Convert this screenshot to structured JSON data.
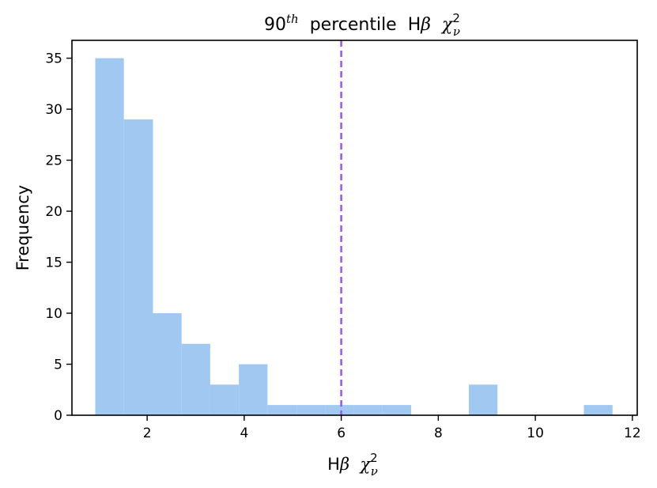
{
  "chart_data": {
    "type": "bar",
    "title": {
      "prefix": "90",
      "superscript": "th",
      "middle": "  percentile  H",
      "beta": "β",
      "chi": "χ",
      "chi_sub": "ν",
      "chi_sup": "2"
    },
    "xlabel": {
      "h": "H",
      "beta": "β",
      "chi": "χ",
      "chi_sub": "ν",
      "chi_sup": "2"
    },
    "ylabel": "Frequency",
    "xlim": [
      0.45,
      12.1
    ],
    "ylim": [
      0,
      36.75
    ],
    "xticks": [
      2,
      4,
      6,
      8,
      10,
      12
    ],
    "yticks": [
      0,
      5,
      10,
      15,
      20,
      25,
      30,
      35
    ],
    "bins": [
      {
        "x0": 0.93,
        "x1": 1.52,
        "count": 35
      },
      {
        "x0": 1.52,
        "x1": 2.12,
        "count": 29
      },
      {
        "x0": 2.12,
        "x1": 2.71,
        "count": 10
      },
      {
        "x0": 2.71,
        "x1": 3.3,
        "count": 7
      },
      {
        "x0": 3.3,
        "x1": 3.89,
        "count": 3
      },
      {
        "x0": 3.89,
        "x1": 4.48,
        "count": 5
      },
      {
        "x0": 4.48,
        "x1": 5.08,
        "count": 1
      },
      {
        "x0": 5.08,
        "x1": 5.67,
        "count": 1
      },
      {
        "x0": 5.67,
        "x1": 6.26,
        "count": 1
      },
      {
        "x0": 6.26,
        "x1": 6.85,
        "count": 1
      },
      {
        "x0": 6.85,
        "x1": 7.44,
        "count": 1
      },
      {
        "x0": 7.44,
        "x1": 8.04,
        "count": 0
      },
      {
        "x0": 8.04,
        "x1": 8.63,
        "count": 0
      },
      {
        "x0": 8.63,
        "x1": 9.22,
        "count": 3
      },
      {
        "x0": 9.22,
        "x1": 9.81,
        "count": 0
      },
      {
        "x0": 9.81,
        "x1": 10.4,
        "count": 0
      },
      {
        "x0": 10.4,
        "x1": 11.0,
        "count": 0
      },
      {
        "x0": 11.0,
        "x1": 11.59,
        "count": 1
      }
    ],
    "percentile_line": {
      "x": 6.0
    },
    "bar_color": "#a0c8f1",
    "line_color": "#9e5ce8",
    "grid": false
  }
}
